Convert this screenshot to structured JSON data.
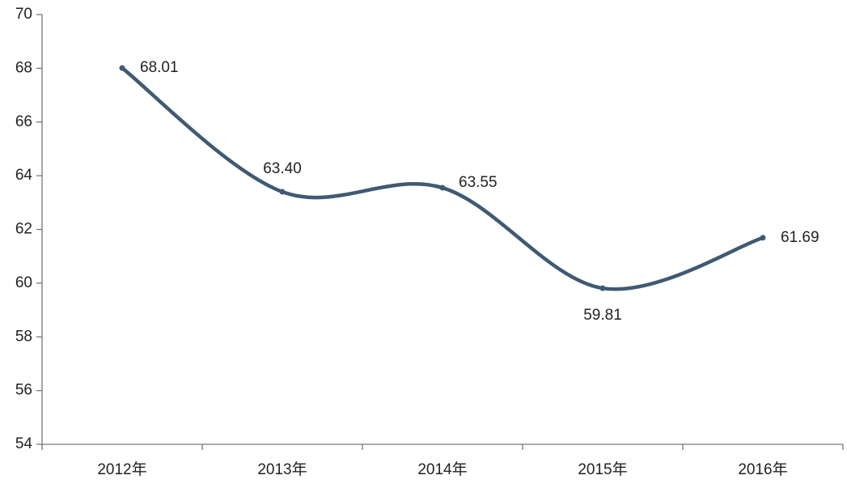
{
  "chart_data": {
    "type": "line",
    "categories": [
      "2012年",
      "2013年",
      "2014年",
      "2015年",
      "2016年"
    ],
    "values": [
      68.01,
      63.4,
      63.55,
      59.81,
      61.69
    ],
    "value_labels": [
      "68.01",
      "63.40",
      "63.55",
      "59.81",
      "61.69"
    ],
    "color": "#3f5a72",
    "smooth": true,
    "ylim": [
      54,
      70
    ],
    "yticks": [
      54,
      56,
      58,
      60,
      62,
      64,
      66,
      68,
      70
    ],
    "grid": false
  }
}
